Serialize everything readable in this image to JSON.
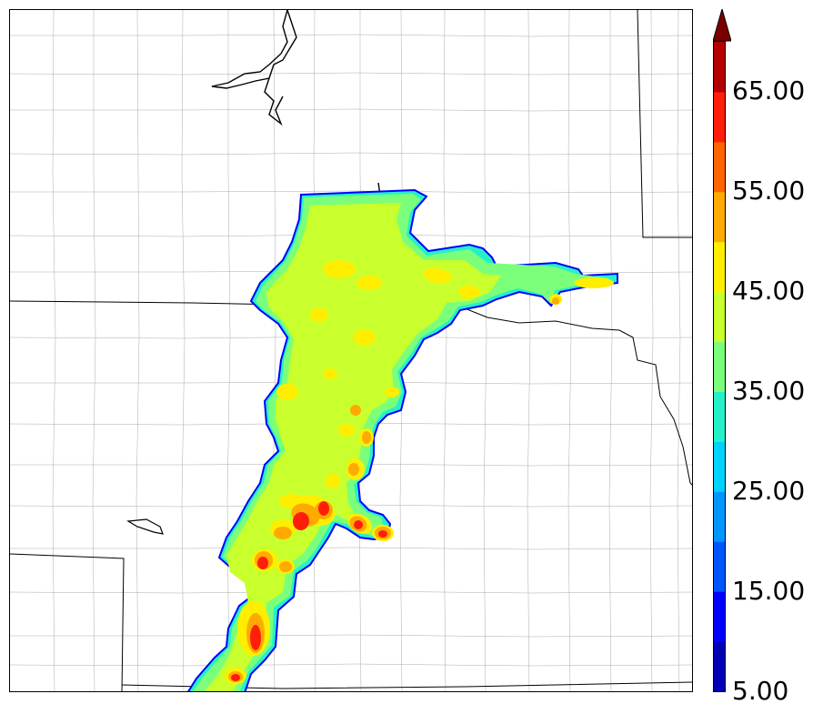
{
  "colorbar": {
    "tick_labels": [
      "5.00",
      "15.00",
      "25.00",
      "35.00",
      "45.00",
      "55.00",
      "65.00"
    ],
    "levels": [
      5,
      10,
      15,
      20,
      25,
      30,
      35,
      40,
      45,
      50,
      55,
      60,
      65,
      70
    ],
    "colors": [
      "#0000b4",
      "#0000ff",
      "#0055ff",
      "#0096ff",
      "#00d2ff",
      "#26f0c8",
      "#7bff7b",
      "#c8ff2c",
      "#ffee00",
      "#ffaa00",
      "#ff6600",
      "#ff1e0a",
      "#b40000"
    ],
    "extend_color": "#7a0000"
  },
  "map": {
    "boundary_color_state": "#000000",
    "boundary_color_county": "#aaaaaa",
    "field_colors": {
      "outline": "#0000ff",
      "low": "#26f0c8",
      "mid": "#7bff7b",
      "high": "#c8ff2c",
      "strong": "#ffee00",
      "core": "#ffaa00",
      "intense": "#ff1e0a"
    }
  }
}
